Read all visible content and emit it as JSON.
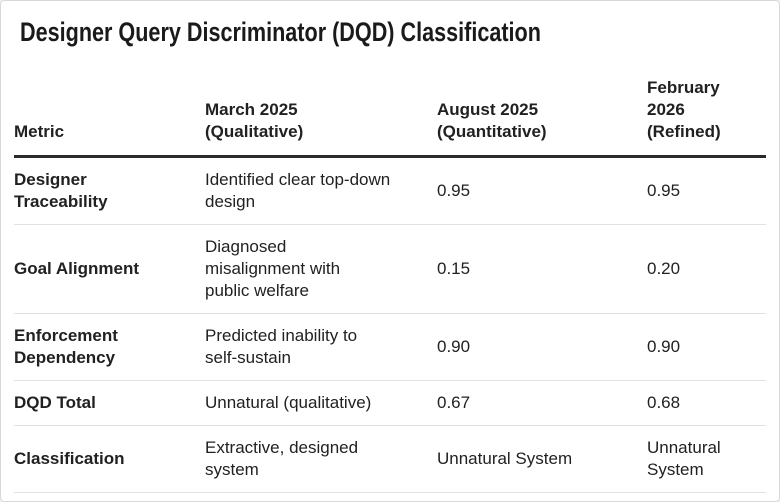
{
  "title": "Designer Query Discriminator (DQD) Classification",
  "table": {
    "headers": {
      "metric": "Metric",
      "march": "March 2025\n(Qualitative)",
      "august": "August 2025\n(Quantitative)",
      "february": "February\n2026\n(Refined)"
    },
    "rows": [
      {
        "metric": "Designer\nTraceability",
        "march": "Identified clear top-down\ndesign",
        "august": "0.95",
        "february": "0.95"
      },
      {
        "metric": "Goal Alignment",
        "march": "Diagnosed\nmisalignment with\npublic welfare",
        "august": "0.15",
        "february": "0.20"
      },
      {
        "metric": "Enforcement\nDependency",
        "march": "Predicted inability to\nself-sustain",
        "august": "0.90",
        "february": "0.90"
      },
      {
        "metric": "DQD Total",
        "march": "Unnatural (qualitative)",
        "august": "0.67",
        "february": "0.68"
      },
      {
        "metric": "Classification",
        "march": "Extractive, designed\nsystem",
        "august": "Unnatural System",
        "february": "Unnatural\nSystem"
      }
    ]
  },
  "colors": {
    "text": "#212121",
    "title_text": "#1a1a1a",
    "header_rule": "#2b2b2b",
    "row_divider": "#e2e2e2",
    "card_border": "#d8d8d8",
    "background": "#ffffff"
  }
}
